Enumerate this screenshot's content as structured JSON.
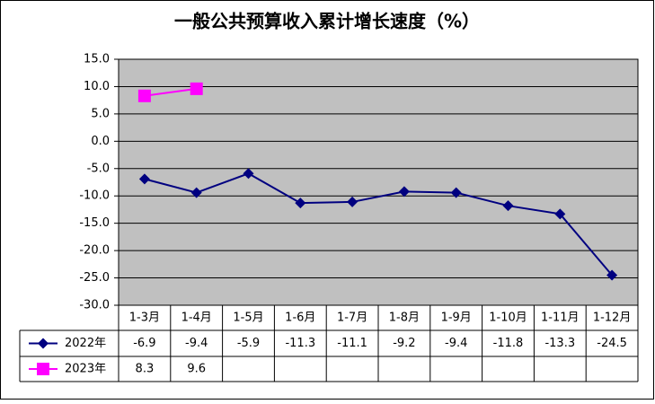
{
  "chart_data": {
    "type": "line",
    "title": "一般公共预算收入累计增长速度（%）",
    "categories": [
      "1-3月",
      "1-4月",
      "1-5月",
      "1-6月",
      "1-7月",
      "1-8月",
      "1-9月",
      "1-10月",
      "1-11月",
      "1-12月"
    ],
    "series": [
      {
        "name": "2022年",
        "color": "#000080",
        "values": [
          -6.9,
          -9.4,
          -5.9,
          -11.3,
          -11.1,
          -9.2,
          -9.4,
          -11.8,
          -13.3,
          -24.5
        ]
      },
      {
        "name": "2023年",
        "color": "#ff00ff",
        "values": [
          8.3,
          9.6,
          null,
          null,
          null,
          null,
          null,
          null,
          null,
          null
        ]
      }
    ],
    "ylim": [
      -30,
      15
    ],
    "yticks": [
      {
        "value": -30,
        "label": "-30.0"
      },
      {
        "value": -25,
        "label": "-25.0"
      },
      {
        "value": -20,
        "label": "-20.0"
      },
      {
        "value": -15,
        "label": "-15.0"
      },
      {
        "value": -10,
        "label": "-10.0"
      },
      {
        "value": -5,
        "label": "-5.0"
      },
      {
        "value": 0,
        "label": "0.0"
      },
      {
        "value": 5,
        "label": "5.0"
      },
      {
        "value": 10,
        "label": "10.0"
      },
      {
        "value": 15,
        "label": "15.0"
      }
    ],
    "grid": true,
    "plot_background": "#c0c0c0"
  }
}
